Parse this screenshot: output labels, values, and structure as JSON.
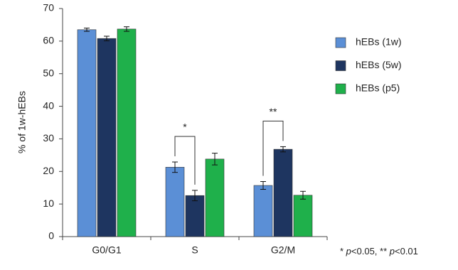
{
  "chart_data": {
    "type": "bar",
    "categories": [
      "G0/G1",
      "S",
      "G2/M"
    ],
    "series": [
      {
        "name": "hEBs (1w)",
        "color": "#5b8fd6",
        "values": [
          63.5,
          21.3,
          15.7
        ],
        "errors": [
          0.5,
          1.6,
          1.2
        ]
      },
      {
        "name": "hEBs (5w)",
        "color": "#1e3560",
        "values": [
          60.8,
          12.6,
          26.8
        ],
        "errors": [
          0.7,
          1.6,
          0.8
        ]
      },
      {
        "name": "hEBs (p5)",
        "color": "#1fb04b",
        "values": [
          63.7,
          23.8,
          12.7
        ],
        "errors": [
          0.7,
          1.8,
          1.2
        ]
      }
    ],
    "ylabel": "% of 1w-hEBs",
    "ylim": [
      0,
      70
    ],
    "yticks": [
      0,
      10,
      20,
      30,
      40,
      50,
      60,
      70
    ],
    "annotations": [
      {
        "text": "*",
        "category": "S"
      },
      {
        "text": "**",
        "category": "G2/M"
      }
    ],
    "footnote": [
      "* ",
      "p",
      "<0.05, ** ",
      "p",
      "<0.01"
    ]
  }
}
